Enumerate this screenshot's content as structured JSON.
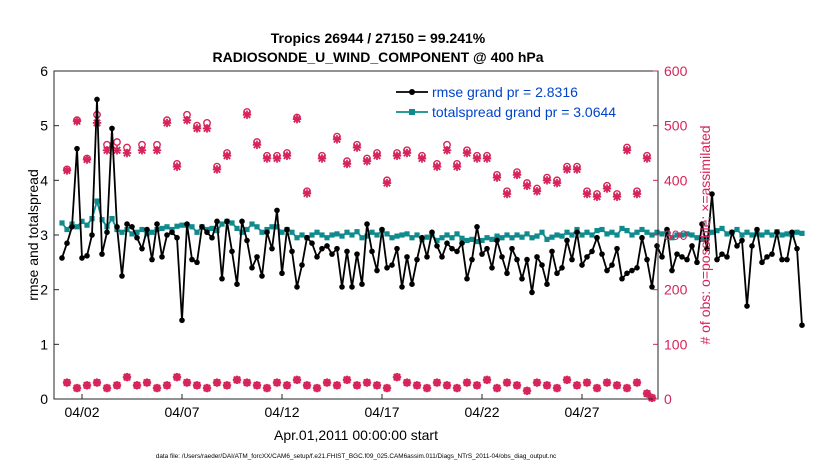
{
  "chart_data": {
    "type": "line",
    "title_line1": "Tropics 26944 / 27150 = 99.241%",
    "title_line2": "RADIOSONDE_U_WIND_COMPONENT @ 400 hPa",
    "xlabel": "Apr.01,2011 00:00:00 start",
    "ylabel_left": "rmse and totalspread",
    "ylabel_right": "# of obs: o=possible; ×=assimilated",
    "footer": "data file: /Users/raeder/DAI/ATM_forcXX/CAM6_setup/f.e21.FHIST_BGC.f09_025.CAM6assim.011/Diags_NTrS_2011-04/obs_diag_output.nc",
    "xlim": [
      0.6,
      30.8
    ],
    "ylim_left": [
      0,
      6
    ],
    "ylim_right": [
      0,
      600
    ],
    "yticks_left": [
      "0",
      "1",
      "2",
      "3",
      "4",
      "5",
      "6"
    ],
    "yticks_right": [
      "0",
      "100",
      "200",
      "300",
      "400",
      "500",
      "600"
    ],
    "xticks": [
      {
        "day": 2,
        "label": "04/02"
      },
      {
        "day": 7,
        "label": "04/07"
      },
      {
        "day": 12,
        "label": "04/12"
      },
      {
        "day": 17,
        "label": "04/17"
      },
      {
        "day": 22,
        "label": "04/22"
      },
      {
        "day": 27,
        "label": "04/27"
      }
    ],
    "colors": {
      "rmse": "#000000",
      "spread": "#0f8b8d",
      "obs": "#d6245a",
      "legend_text": "#0044cc",
      "axis_right": "#d6245a"
    },
    "legend": [
      {
        "key": "rmse",
        "label": "rmse grand pr = 2.8316"
      },
      {
        "key": "spread",
        "label": "totalspread grand pr = 3.0644"
      }
    ],
    "t0": 1.0,
    "dt": 0.25,
    "rmse": [
      2.58,
      2.85,
      3.15,
      4.58,
      2.58,
      2.62,
      3.0,
      5.48,
      2.65,
      3.05,
      4.95,
      3.15,
      2.25,
      3.2,
      3.15,
      2.95,
      2.75,
      3.1,
      2.55,
      3.2,
      2.6,
      3.0,
      3.05,
      2.95,
      1.44,
      3.2,
      2.55,
      2.5,
      3.15,
      3.05,
      2.95,
      3.25,
      2.2,
      3.25,
      2.7,
      2.1,
      3.25,
      2.9,
      2.4,
      2.6,
      2.25,
      3.05,
      2.75,
      3.45,
      2.3,
      3.1,
      2.7,
      2.05,
      2.45,
      2.95,
      2.85,
      2.6,
      2.75,
      2.8,
      2.65,
      2.75,
      2.05,
      2.7,
      2.05,
      2.65,
      2.1,
      3.2,
      2.7,
      2.35,
      3.1,
      2.4,
      2.45,
      2.75,
      2.05,
      2.6,
      2.1,
      2.55,
      2.95,
      2.6,
      3.05,
      2.8,
      2.6,
      2.85,
      2.75,
      2.7,
      2.85,
      2.2,
      2.55,
      3.15,
      2.65,
      2.75,
      2.4,
      2.9,
      2.6,
      2.3,
      2.75,
      2.55,
      2.2,
      2.55,
      1.95,
      2.6,
      2.45,
      2.1,
      2.7,
      2.3,
      2.4,
      2.9,
      2.55,
      3.05,
      2.45,
      2.6,
      2.7,
      2.95,
      2.65,
      2.35,
      2.45,
      2.75,
      2.2,
      2.3,
      2.35,
      2.4,
      2.95,
      2.55,
      2.05,
      2.8,
      2.6,
      3.1,
      2.35,
      2.65,
      2.6,
      2.55,
      2.8,
      2.5,
      3.2,
      2.75,
      3.75,
      2.55,
      2.65,
      2.6,
      3.05,
      2.8,
      2.9,
      1.7,
      2.8,
      3.1,
      2.5,
      2.6,
      2.65,
      3.05,
      2.55,
      2.55,
      3.05,
      2.75,
      1.35
    ],
    "spread": [
      3.22,
      3.1,
      3.2,
      3.15,
      3.25,
      3.18,
      3.3,
      3.62,
      3.28,
      3.15,
      3.3,
      3.1,
      3.05,
      3.1,
      3.02,
      3.05,
      3.1,
      3.02,
      3.05,
      3.1,
      3.12,
      3.15,
      3.1,
      3.16,
      3.18,
      3.18,
      3.15,
      3.05,
      3.15,
      3.1,
      3.12,
      3.08,
      3.2,
      3.25,
      3.22,
      3.12,
      3.05,
      3.1,
      3.2,
      3.15,
      3.05,
      3.1,
      3.15,
      3.15,
      3.05,
      3.1,
      3.05,
      2.95,
      3.0,
      2.95,
      3.0,
      3.05,
      3.0,
      2.95,
      3.0,
      3.02,
      2.98,
      3.05,
      3.0,
      3.06,
      2.95,
      2.98,
      3.05,
      3.0,
      3.08,
      3.02,
      2.95,
      2.98,
      3.0,
      3.02,
      2.95,
      3.0,
      2.92,
      2.96,
      3.0,
      2.9,
      2.95,
      3.0,
      2.95,
      3.02,
      2.94,
      2.9,
      2.92,
      2.88,
      2.9,
      2.95,
      2.92,
      2.98,
      2.95,
      3.0,
      2.95,
      3.0,
      2.96,
      3.02,
      2.95,
      2.98,
      3.05,
      2.92,
      2.96,
      3.0,
      2.98,
      3.05,
      3.0,
      3.1,
      3.0,
      3.05,
      3.0,
      3.08,
      3.1,
      3.02,
      3.05,
      3.0,
      3.12,
      3.08,
      3.0,
      3.05,
      3.1,
      3.05,
      3.0,
      3.05,
      3.02,
      3.06,
      2.95,
      3.0,
      3.0,
      3.02,
      3.0,
      2.95,
      2.92,
      2.95,
      3.05,
      3.08,
      3.12,
      3.02,
      3.05,
      3.1,
      3.0,
      3.05,
      3.0,
      3.02,
      3.0,
      3.05,
      3.0,
      3.06,
      3.0,
      3.02,
      3.0,
      3.05,
      3.03
    ],
    "obs_possible_high": [
      [
        1.25,
        420
      ],
      [
        1.75,
        510
      ],
      [
        2.25,
        440
      ],
      [
        2.75,
        520
      ],
      [
        3.25,
        465
      ],
      [
        3.75,
        470
      ],
      [
        4.25,
        460
      ],
      [
        5.0,
        465
      ],
      [
        5.75,
        465
      ],
      [
        6.25,
        510
      ],
      [
        6.75,
        430
      ],
      [
        7.25,
        520
      ],
      [
        7.75,
        500
      ],
      [
        8.25,
        505
      ],
      [
        8.75,
        425
      ],
      [
        9.25,
        450
      ],
      [
        10.25,
        525
      ],
      [
        10.75,
        470
      ],
      [
        11.25,
        445
      ],
      [
        11.75,
        445
      ],
      [
        12.25,
        450
      ],
      [
        12.75,
        515
      ],
      [
        13.25,
        380
      ],
      [
        14.0,
        445
      ],
      [
        14.75,
        480
      ],
      [
        15.25,
        435
      ],
      [
        15.75,
        465
      ],
      [
        16.25,
        440
      ],
      [
        16.75,
        450
      ],
      [
        17.25,
        400
      ],
      [
        17.75,
        450
      ],
      [
        18.25,
        455
      ],
      [
        19.0,
        445
      ],
      [
        19.75,
        430
      ],
      [
        20.25,
        465
      ],
      [
        20.75,
        430
      ],
      [
        21.25,
        455
      ],
      [
        21.75,
        445
      ],
      [
        22.25,
        445
      ],
      [
        22.75,
        410
      ],
      [
        23.25,
        380
      ],
      [
        23.75,
        415
      ],
      [
        24.25,
        395
      ],
      [
        24.75,
        385
      ],
      [
        25.25,
        405
      ],
      [
        25.75,
        400
      ],
      [
        26.25,
        425
      ],
      [
        26.75,
        425
      ],
      [
        27.25,
        380
      ],
      [
        27.75,
        375
      ],
      [
        28.25,
        390
      ],
      [
        28.75,
        375
      ],
      [
        29.25,
        460
      ],
      [
        29.75,
        380
      ],
      [
        30.25,
        445
      ]
    ],
    "obs_assimilated_high": [
      [
        1.25,
        418
      ],
      [
        1.75,
        508
      ],
      [
        2.25,
        438
      ],
      [
        2.75,
        505
      ],
      [
        3.25,
        455
      ],
      [
        3.75,
        455
      ],
      [
        4.25,
        450
      ],
      [
        5.0,
        455
      ],
      [
        5.75,
        455
      ],
      [
        6.25,
        505
      ],
      [
        6.75,
        425
      ],
      [
        7.25,
        510
      ],
      [
        7.75,
        495
      ],
      [
        8.25,
        495
      ],
      [
        8.75,
        420
      ],
      [
        9.25,
        445
      ],
      [
        10.25,
        520
      ],
      [
        10.75,
        465
      ],
      [
        11.25,
        440
      ],
      [
        11.75,
        440
      ],
      [
        12.25,
        445
      ],
      [
        12.75,
        512
      ],
      [
        13.25,
        376
      ],
      [
        14.0,
        440
      ],
      [
        14.75,
        475
      ],
      [
        15.25,
        430
      ],
      [
        15.75,
        460
      ],
      [
        16.25,
        435
      ],
      [
        16.75,
        445
      ],
      [
        17.25,
        395
      ],
      [
        17.75,
        445
      ],
      [
        18.25,
        450
      ],
      [
        19.0,
        440
      ],
      [
        19.75,
        425
      ],
      [
        20.25,
        455
      ],
      [
        20.75,
        425
      ],
      [
        21.25,
        450
      ],
      [
        21.75,
        440
      ],
      [
        22.25,
        440
      ],
      [
        22.75,
        405
      ],
      [
        23.25,
        375
      ],
      [
        23.75,
        410
      ],
      [
        24.25,
        390
      ],
      [
        24.75,
        380
      ],
      [
        25.25,
        400
      ],
      [
        25.75,
        395
      ],
      [
        26.25,
        420
      ],
      [
        26.75,
        420
      ],
      [
        27.25,
        375
      ],
      [
        27.75,
        370
      ],
      [
        28.25,
        385
      ],
      [
        28.75,
        370
      ],
      [
        29.25,
        455
      ],
      [
        29.75,
        375
      ],
      [
        30.25,
        440
      ]
    ],
    "obs_low": [
      [
        1.25,
        30
      ],
      [
        1.75,
        20
      ],
      [
        2.25,
        25
      ],
      [
        2.75,
        30
      ],
      [
        3.25,
        20
      ],
      [
        3.75,
        25
      ],
      [
        4.25,
        40
      ],
      [
        4.75,
        25
      ],
      [
        5.25,
        30
      ],
      [
        5.75,
        20
      ],
      [
        6.25,
        25
      ],
      [
        6.75,
        40
      ],
      [
        7.25,
        30
      ],
      [
        7.75,
        25
      ],
      [
        8.25,
        20
      ],
      [
        8.75,
        30
      ],
      [
        9.25,
        25
      ],
      [
        9.75,
        35
      ],
      [
        10.25,
        30
      ],
      [
        10.75,
        25
      ],
      [
        11.25,
        20
      ],
      [
        11.75,
        30
      ],
      [
        12.25,
        25
      ],
      [
        12.75,
        35
      ],
      [
        13.25,
        25
      ],
      [
        13.75,
        20
      ],
      [
        14.25,
        30
      ],
      [
        14.75,
        25
      ],
      [
        15.25,
        35
      ],
      [
        15.75,
        25
      ],
      [
        16.25,
        30
      ],
      [
        16.75,
        25
      ],
      [
        17.25,
        20
      ],
      [
        17.75,
        40
      ],
      [
        18.25,
        30
      ],
      [
        18.75,
        25
      ],
      [
        19.25,
        20
      ],
      [
        19.75,
        30
      ],
      [
        20.25,
        25
      ],
      [
        20.75,
        20
      ],
      [
        21.25,
        30
      ],
      [
        21.75,
        25
      ],
      [
        22.25,
        35
      ],
      [
        22.75,
        20
      ],
      [
        23.25,
        30
      ],
      [
        23.75,
        25
      ],
      [
        24.25,
        15
      ],
      [
        24.75,
        30
      ],
      [
        25.25,
        25
      ],
      [
        25.75,
        20
      ],
      [
        26.25,
        35
      ],
      [
        26.75,
        25
      ],
      [
        27.25,
        30
      ],
      [
        27.75,
        20
      ],
      [
        28.25,
        30
      ],
      [
        28.75,
        25
      ],
      [
        29.25,
        20
      ],
      [
        29.75,
        30
      ],
      [
        30.25,
        10
      ],
      [
        30.5,
        2
      ]
    ]
  }
}
